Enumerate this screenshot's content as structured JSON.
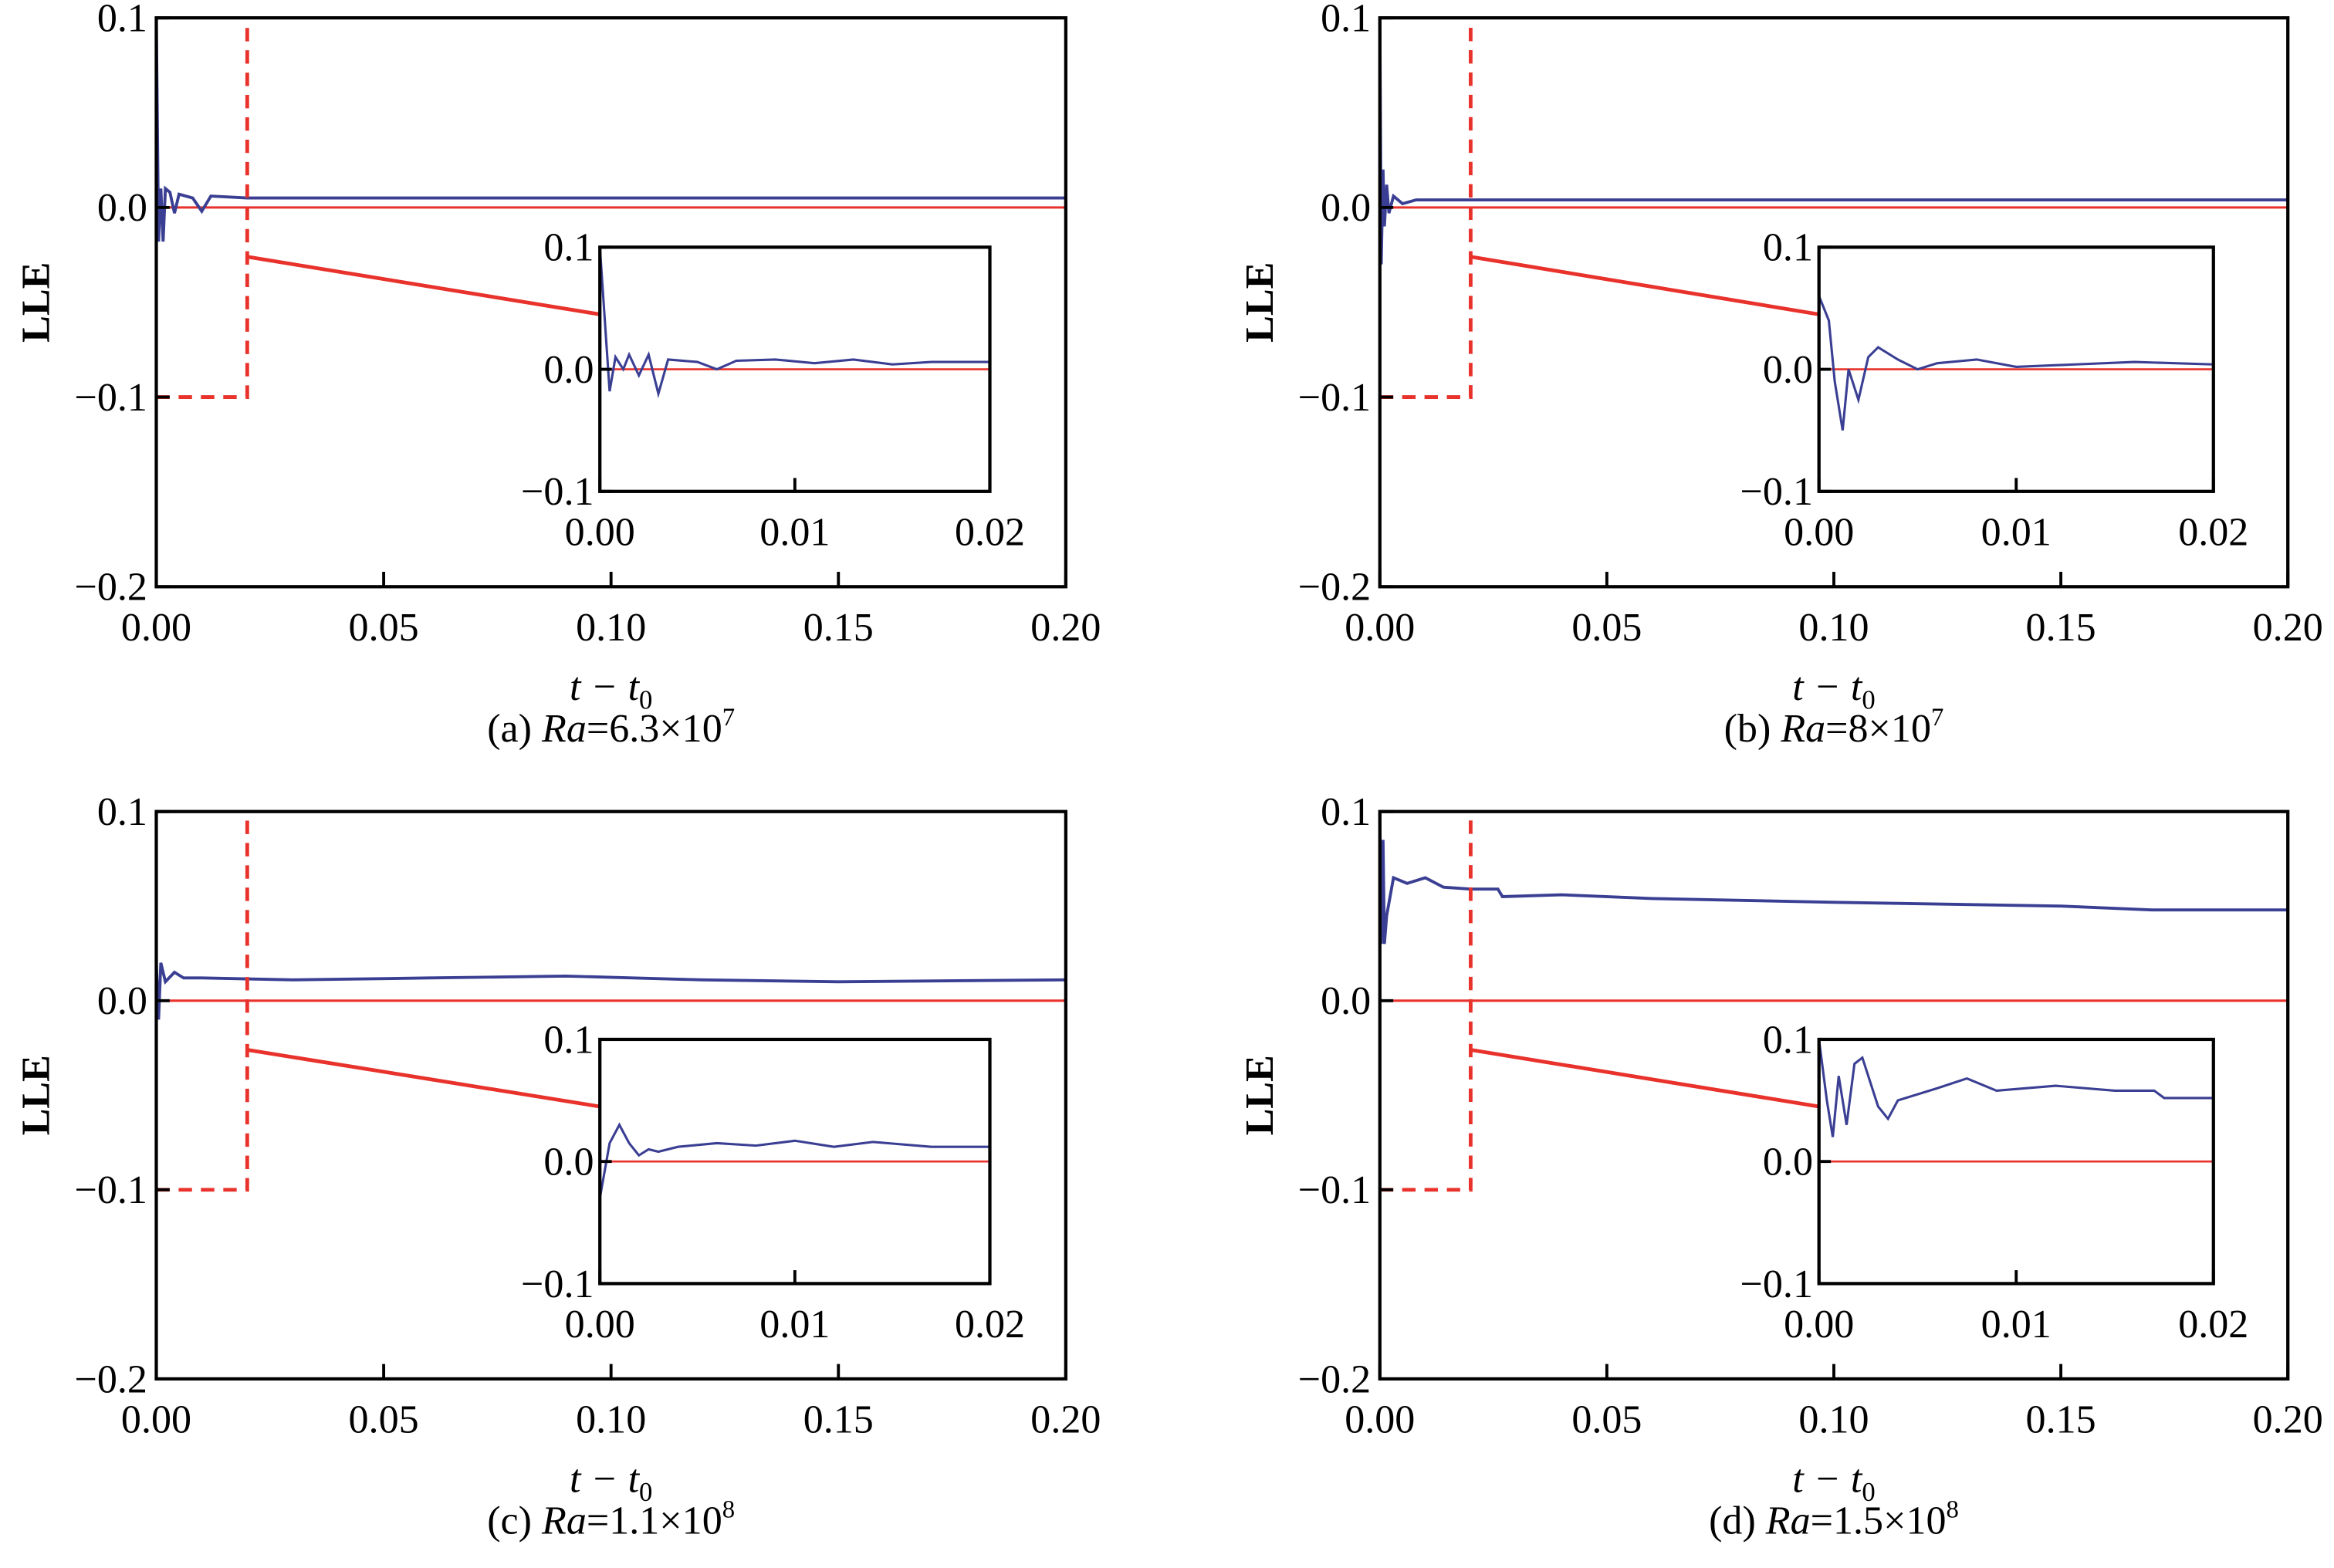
{
  "colors": {
    "series": "#3a3f93",
    "reference": "#e8322b",
    "box": "#e8322b",
    "axis": "#000000"
  },
  "chart_data": [
    {
      "type": "line",
      "panel": "a",
      "caption": {
        "prefix": "(a) ",
        "italic": "Ra",
        "rest": "=6.3×10",
        "sup": "7"
      },
      "ylabel": "LLE",
      "xlabel": {
        "var": "t − t",
        "sub": "0"
      },
      "xlim": [
        0,
        0.2
      ],
      "ylim": [
        -0.2,
        0.1
      ],
      "xticks": [
        "0.00",
        "0.05",
        "0.10",
        "0.15",
        "0.20"
      ],
      "xtick_values": [
        0,
        0.05,
        0.1,
        0.15,
        0.2
      ],
      "yticks": [
        "−0.2",
        "−0.1",
        "0.0",
        "0.1"
      ],
      "ytick_values": [
        -0.2,
        -0.1,
        0,
        0.1
      ],
      "reference_line": 0,
      "zoom_box": {
        "x": [
          0,
          0.02
        ],
        "y": [
          -0.1,
          0.1
        ]
      },
      "series": [
        {
          "name": "LLE",
          "x": [
            0,
            0.0005,
            0.001,
            0.0015,
            0.002,
            0.003,
            0.004,
            0.005,
            0.008,
            0.01,
            0.012,
            0.02,
            0.05,
            0.1,
            0.15,
            0.2
          ],
          "y": [
            0.1,
            -0.018,
            0.01,
            -0.018,
            0.01,
            0.008,
            -0.003,
            0.007,
            0.005,
            -0.002,
            0.006,
            0.005,
            0.005,
            0.005,
            0.005,
            0.005
          ]
        }
      ],
      "inset": {
        "xlim": [
          0,
          0.02
        ],
        "ylim": [
          -0.1,
          0.1
        ],
        "xticks": [
          "0.00",
          "0.01",
          "0.02"
        ],
        "xtick_values": [
          0,
          0.01,
          0.02
        ],
        "yticks": [
          "−0.1",
          "0.0",
          "0.1"
        ],
        "ytick_values": [
          -0.1,
          0,
          0.1
        ],
        "series": {
          "x": [
            0,
            0.0005,
            0.0008,
            0.0012,
            0.0015,
            0.002,
            0.0025,
            0.003,
            0.0035,
            0.005,
            0.006,
            0.007,
            0.009,
            0.011,
            0.013,
            0.015,
            0.017,
            0.02
          ],
          "y": [
            0.1,
            -0.018,
            0.01,
            0.0,
            0.012,
            -0.005,
            0.012,
            -0.02,
            0.008,
            0.006,
            0,
            0.007,
            0.008,
            0.005,
            0.008,
            0.004,
            0.006,
            0.006
          ]
        }
      }
    },
    {
      "type": "line",
      "panel": "b",
      "caption": {
        "prefix": "(b) ",
        "italic": "Ra",
        "rest": "=8×10",
        "sup": "7"
      },
      "ylabel": "LLE",
      "xlabel": {
        "var": "t − t",
        "sub": "0"
      },
      "xlim": [
        0,
        0.2
      ],
      "ylim": [
        -0.2,
        0.1
      ],
      "xticks": [
        "0.00",
        "0.05",
        "0.10",
        "0.15",
        "0.20"
      ],
      "xtick_values": [
        0,
        0.05,
        0.1,
        0.15,
        0.2
      ],
      "yticks": [
        "−0.2",
        "−0.1",
        "0.0",
        "0.1"
      ],
      "ytick_values": [
        -0.2,
        -0.1,
        0,
        0.1
      ],
      "reference_line": 0,
      "zoom_box": {
        "x": [
          0,
          0.02
        ],
        "y": [
          -0.1,
          0.1
        ]
      },
      "series": [
        {
          "name": "LLE",
          "x": [
            0,
            0.0003,
            0.0007,
            0.001,
            0.0015,
            0.002,
            0.003,
            0.005,
            0.008,
            0.02,
            0.1,
            0.2
          ],
          "y": [
            0.1,
            -0.03,
            0.02,
            -0.01,
            0.012,
            -0.003,
            0.006,
            0.002,
            0.004,
            0.004,
            0.004,
            0.004
          ]
        }
      ],
      "inset": {
        "xlim": [
          0,
          0.02
        ],
        "ylim": [
          -0.1,
          0.1
        ],
        "xticks": [
          "0.00",
          "0.01",
          "0.02"
        ],
        "xtick_values": [
          0,
          0.01,
          0.02
        ],
        "yticks": [
          "−0.1",
          "0.0",
          "0.1"
        ],
        "ytick_values": [
          -0.1,
          0,
          0.1
        ],
        "series": {
          "x": [
            0,
            0.0005,
            0.0008,
            0.0012,
            0.0015,
            0.002,
            0.0025,
            0.003,
            0.004,
            0.005,
            0.006,
            0.008,
            0.01,
            0.013,
            0.016,
            0.02
          ],
          "y": [
            0.06,
            0.04,
            -0.01,
            -0.05,
            0.0,
            -0.025,
            0.01,
            0.018,
            0.008,
            0,
            0.005,
            0.008,
            0.002,
            0.004,
            0.006,
            0.004
          ]
        }
      }
    },
    {
      "type": "line",
      "panel": "c",
      "caption": {
        "prefix": "(c) ",
        "italic": "Ra",
        "rest": "=1.1×10",
        "sup": "8"
      },
      "ylabel": "LLE",
      "xlabel": {
        "var": "t − t",
        "sub": "0"
      },
      "xlim": [
        0,
        0.2
      ],
      "ylim": [
        -0.2,
        0.1
      ],
      "xticks": [
        "0.00",
        "0.05",
        "0.10",
        "0.15",
        "0.20"
      ],
      "xtick_values": [
        0,
        0.05,
        0.1,
        0.15,
        0.2
      ],
      "yticks": [
        "−0.2",
        "−0.1",
        "0.0",
        "0.1"
      ],
      "ytick_values": [
        -0.2,
        -0.1,
        0,
        0.1
      ],
      "reference_line": 0,
      "zoom_box": {
        "x": [
          0,
          0.02
        ],
        "y": [
          -0.1,
          0.1
        ]
      },
      "series": [
        {
          "name": "LLE",
          "x": [
            0,
            0.0005,
            0.001,
            0.002,
            0.004,
            0.006,
            0.01,
            0.03,
            0.06,
            0.09,
            0.12,
            0.15,
            0.2
          ],
          "y": [
            0.02,
            -0.01,
            0.02,
            0.01,
            0.015,
            0.012,
            0.012,
            0.011,
            0.012,
            0.013,
            0.011,
            0.01,
            0.011
          ]
        }
      ],
      "inset": {
        "xlim": [
          0,
          0.02
        ],
        "ylim": [
          -0.1,
          0.1
        ],
        "xticks": [
          "0.00",
          "0.01",
          "0.02"
        ],
        "xtick_values": [
          0,
          0.01,
          0.02
        ],
        "yticks": [
          "−0.1",
          "0.0",
          "0.1"
        ],
        "ytick_values": [
          -0.1,
          0,
          0.1
        ],
        "series": {
          "x": [
            0,
            0.0005,
            0.001,
            0.0015,
            0.002,
            0.0025,
            0.003,
            0.004,
            0.006,
            0.008,
            0.01,
            0.012,
            0.014,
            0.017,
            0.02
          ],
          "y": [
            -0.03,
            0.015,
            0.03,
            0.015,
            0.005,
            0.01,
            0.008,
            0.012,
            0.015,
            0.013,
            0.017,
            0.012,
            0.016,
            0.012,
            0.012
          ]
        }
      }
    },
    {
      "type": "line",
      "panel": "d",
      "caption": {
        "prefix": "(d) ",
        "italic": "Ra",
        "rest": "=1.5×10",
        "sup": "8"
      },
      "ylabel": "LLE",
      "xlabel": {
        "var": "t − t",
        "sub": "0"
      },
      "xlim": [
        0,
        0.2
      ],
      "ylim": [
        -0.2,
        0.1
      ],
      "xticks": [
        "0.00",
        "0.05",
        "0.10",
        "0.15",
        "0.20"
      ],
      "xtick_values": [
        0,
        0.05,
        0.1,
        0.15,
        0.2
      ],
      "yticks": [
        "−0.2",
        "−0.1",
        "0.0",
        "0.1"
      ],
      "ytick_values": [
        -0.2,
        -0.1,
        0,
        0.1
      ],
      "reference_line": 0,
      "zoom_box": {
        "x": [
          0,
          0.02
        ],
        "y": [
          -0.1,
          0.1
        ]
      },
      "series": [
        {
          "name": "LLE",
          "x": [
            0,
            0.0003,
            0.0007,
            0.001,
            0.0015,
            0.003,
            0.006,
            0.01,
            0.014,
            0.02,
            0.026,
            0.027,
            0.04,
            0.06,
            0.1,
            0.15,
            0.17,
            0.2
          ],
          "y": [
            0.1,
            0.03,
            0.085,
            0.03,
            0.045,
            0.065,
            0.062,
            0.065,
            0.06,
            0.059,
            0.059,
            0.055,
            0.056,
            0.054,
            0.052,
            0.05,
            0.048,
            0.048
          ]
        }
      ],
      "inset": {
        "xlim": [
          0,
          0.02
        ],
        "ylim": [
          -0.1,
          0.1
        ],
        "xticks": [
          "0.00",
          "0.01",
          "0.02"
        ],
        "xtick_values": [
          0,
          0.01,
          0.02
        ],
        "yticks": [
          "−0.1",
          "0.0",
          "0.1"
        ],
        "ytick_values": [
          -0.1,
          0,
          0.1
        ],
        "series": {
          "x": [
            0,
            0.0004,
            0.0007,
            0.001,
            0.0014,
            0.0018,
            0.0022,
            0.0027,
            0.003,
            0.0035,
            0.004,
            0.006,
            0.0075,
            0.009,
            0.012,
            0.015,
            0.017,
            0.0175,
            0.02
          ],
          "y": [
            0.1,
            0.05,
            0.02,
            0.07,
            0.03,
            0.08,
            0.085,
            0.06,
            0.045,
            0.035,
            0.05,
            0.06,
            0.068,
            0.058,
            0.062,
            0.058,
            0.058,
            0.052,
            0.052
          ]
        }
      }
    }
  ]
}
